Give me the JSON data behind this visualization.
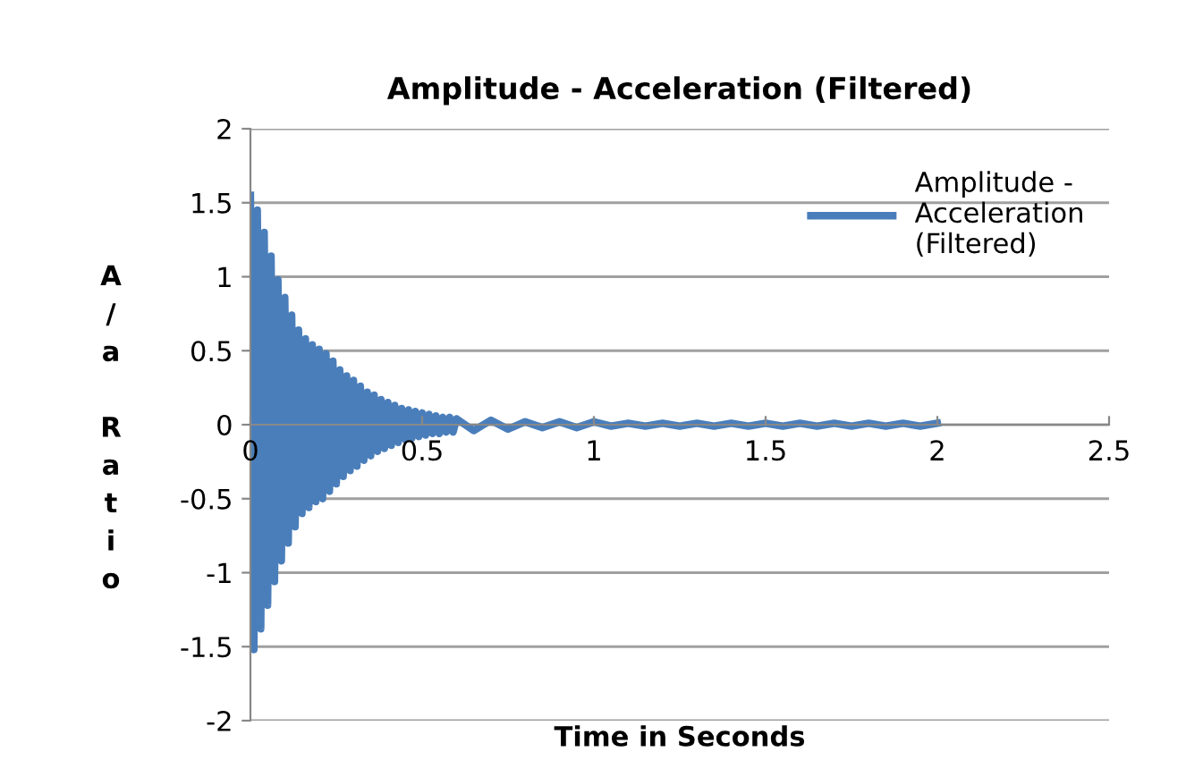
{
  "chart_data": {
    "type": "line",
    "title": "Amplitude - Acceleration (Filtered)",
    "xlabel": "Time in Seconds",
    "ylabel": "A/a Ratio",
    "xlim": [
      0,
      2.5
    ],
    "xticks": [
      0,
      0.5,
      1,
      1.5,
      2,
      2.5
    ],
    "ylim": [
      -2,
      2
    ],
    "yticks": [
      -2,
      -1.5,
      -1,
      -0.5,
      0,
      0.5,
      1,
      1.5,
      2
    ],
    "grid": "y",
    "legend": "top right",
    "line_style": "solid",
    "x": [
      0,
      0.01,
      0.02,
      0.03,
      0.04,
      0.05,
      0.06,
      0.07,
      0.08,
      0.09,
      0.1,
      0.11,
      0.12,
      0.13,
      0.14,
      0.15,
      0.16,
      0.17,
      0.18,
      0.19,
      0.2,
      0.21,
      0.22,
      0.23,
      0.24,
      0.25,
      0.26,
      0.27,
      0.28,
      0.29,
      0.3,
      0.31,
      0.32,
      0.33,
      0.34,
      0.35,
      0.36,
      0.37,
      0.38,
      0.39,
      0.4,
      0.41,
      0.42,
      0.43,
      0.44,
      0.45,
      0.46,
      0.47,
      0.48,
      0.49,
      0.5,
      0.51,
      0.52,
      0.53,
      0.54,
      0.55,
      0.56,
      0.57,
      0.58,
      0.59,
      0.6,
      0.65,
      0.7,
      0.75,
      0.8,
      0.85,
      0.9,
      0.95,
      1,
      1.05,
      1.1,
      1.15,
      1.2,
      1.25,
      1.3,
      1.35,
      1.4,
      1.45,
      1.5,
      1.55,
      1.6,
      1.65,
      1.7,
      1.75,
      1.8,
      1.85,
      1.9,
      1.95,
      2
    ],
    "series": [
      {
        "name": "Amplitude -\nAcceleration\n(Filtered)",
        "color": "#4a7ebb",
        "values": [
          1.55,
          -1.52,
          1.45,
          -1.38,
          1.3,
          -1.22,
          1.14,
          -1.06,
          0.98,
          -0.92,
          0.86,
          -0.8,
          0.74,
          -0.69,
          0.64,
          -0.6,
          0.58,
          -0.56,
          0.54,
          -0.52,
          0.51,
          -0.5,
          0.48,
          -0.45,
          0.43,
          -0.4,
          0.37,
          -0.35,
          0.33,
          -0.31,
          0.3,
          -0.28,
          0.26,
          -0.24,
          0.22,
          -0.21,
          0.2,
          -0.18,
          0.17,
          -0.16,
          0.15,
          -0.14,
          0.13,
          -0.12,
          0.11,
          -0.1,
          0.1,
          -0.09,
          0.09,
          -0.08,
          0.08,
          -0.07,
          0.07,
          -0.06,
          0.06,
          -0.06,
          0.05,
          -0.05,
          0.05,
          -0.05,
          0.04,
          -0.04,
          0.03,
          -0.03,
          0.02,
          -0.02,
          0.02,
          -0.02,
          0.02,
          -0.01,
          0.01,
          -0.01,
          0.01,
          -0.01,
          0.01,
          -0.01,
          0.01,
          -0.01,
          0.01,
          -0.01,
          0.01,
          -0.01,
          0.01,
          -0.01,
          0.01,
          -0.01,
          0.01,
          -0.01,
          0.01
        ]
      }
    ]
  }
}
